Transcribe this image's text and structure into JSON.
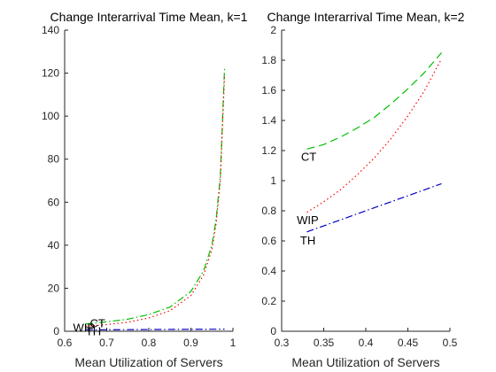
{
  "chart_data": [
    {
      "type": "line",
      "title": "Change Interarrival Time Mean, k=1",
      "xlabel": "Mean Utilization of Servers",
      "ylabel": "",
      "xlim": [
        0.6,
        1.0
      ],
      "ylim": [
        0,
        140
      ],
      "xticks": [
        0.6,
        0.7,
        0.8,
        0.9,
        1.0
      ],
      "xtick_labels": [
        "0.6",
        "0.7",
        "0.8",
        "0.9",
        "1"
      ],
      "yticks": [
        0,
        20,
        40,
        60,
        80,
        100,
        120,
        140
      ],
      "ytick_labels": [
        "0",
        "20",
        "40",
        "60",
        "80",
        "100",
        "120",
        "140"
      ],
      "grid": false,
      "series": [
        {
          "name": "CT",
          "color": "#00c000",
          "dash": "dash-dot",
          "x": [
            0.65,
            0.7,
            0.75,
            0.8,
            0.85,
            0.9,
            0.93,
            0.95,
            0.96,
            0.97,
            0.98
          ],
          "y": [
            3.4,
            4.4,
            5.6,
            7.8,
            11.2,
            18.5,
            28.0,
            40.0,
            52.0,
            72.0,
            122.0
          ]
        },
        {
          "name": "WIP",
          "color": "#ff0000",
          "dash": "dotted",
          "x": [
            0.65,
            0.7,
            0.75,
            0.8,
            0.85,
            0.9,
            0.93,
            0.95,
            0.96,
            0.97,
            0.98
          ],
          "y": [
            2.3,
            3.1,
            4.2,
            6.2,
            9.5,
            16.6,
            26.0,
            38.0,
            50.0,
            70.0,
            119.0
          ]
        },
        {
          "name": "TH",
          "color": "#0000c0",
          "dash": "dash-dot",
          "x": [
            0.65,
            0.98
          ],
          "y": [
            0.65,
            0.98
          ]
        }
      ],
      "labels": [
        {
          "text": "CT",
          "x": 0.66,
          "y": 3.4
        },
        {
          "text": "WIP",
          "x": 0.62,
          "y": 1.4
        },
        {
          "text": "TH",
          "x": 0.65,
          "y": -0.3
        }
      ]
    },
    {
      "type": "line",
      "title": "Change Interarrival Time Mean, k=2",
      "xlabel": "Mean Utilization of Servers",
      "ylabel": "",
      "xlim": [
        0.3,
        0.5
      ],
      "ylim": [
        0,
        2
      ],
      "xticks": [
        0.3,
        0.35,
        0.4,
        0.45,
        0.5
      ],
      "xtick_labels": [
        "0.3",
        "0.35",
        "0.4",
        "0.45",
        "0.5"
      ],
      "yticks": [
        0,
        0.2,
        0.4,
        0.6,
        0.8,
        1.0,
        1.2,
        1.4,
        1.6,
        1.8,
        2.0
      ],
      "ytick_labels": [
        "0",
        "0.2",
        "0.4",
        "0.6",
        "0.8",
        "1",
        "1.2",
        "1.4",
        "1.6",
        "1.8",
        "2"
      ],
      "grid": false,
      "series": [
        {
          "name": "CT",
          "color": "#00c000",
          "dash": "dashed",
          "x": [
            0.33,
            0.35,
            0.37,
            0.39,
            0.41,
            0.43,
            0.45,
            0.47,
            0.49
          ],
          "y": [
            1.21,
            1.24,
            1.29,
            1.35,
            1.42,
            1.51,
            1.61,
            1.72,
            1.85
          ]
        },
        {
          "name": "WIP",
          "color": "#ff0000",
          "dash": "dotted",
          "x": [
            0.33,
            0.35,
            0.37,
            0.39,
            0.41,
            0.43,
            0.45,
            0.47,
            0.49
          ],
          "y": [
            0.79,
            0.86,
            0.94,
            1.04,
            1.15,
            1.28,
            1.43,
            1.6,
            1.81
          ]
        },
        {
          "name": "TH",
          "color": "#0000c0",
          "dash": "dash-dot",
          "x": [
            0.33,
            0.49
          ],
          "y": [
            0.66,
            0.98
          ]
        }
      ],
      "labels": [
        {
          "text": "CT",
          "x": 0.323,
          "y": 1.155
        },
        {
          "text": "WIP",
          "x": 0.318,
          "y": 0.735
        },
        {
          "text": "TH",
          "x": 0.322,
          "y": 0.6
        }
      ]
    }
  ]
}
